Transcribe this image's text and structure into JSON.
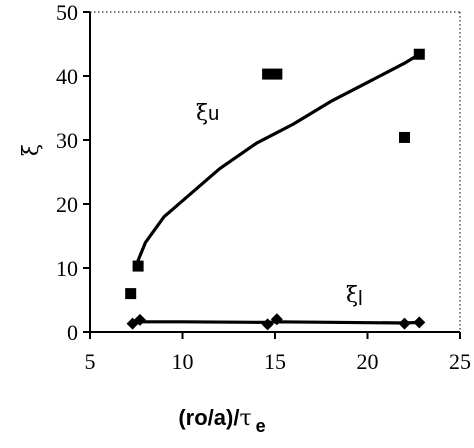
{
  "chart_data": {
    "type": "scatter",
    "title": "",
    "xlabel_main": "(ro/a)/",
    "xlabel_tau": "τ",
    "xlabel_sub": "e",
    "ylabel": "ξ",
    "xlim": [
      5,
      25
    ],
    "ylim": [
      0,
      50
    ],
    "x_ticks": [
      5,
      10,
      15,
      20,
      25
    ],
    "y_ticks": [
      0,
      10,
      20,
      30,
      40,
      50
    ],
    "x_tick_labels": [
      "5",
      "10",
      "15",
      "20",
      "25"
    ],
    "y_tick_labels": [
      "0",
      "10",
      "20",
      "30",
      "40",
      "50"
    ],
    "grid": false,
    "annotations": [
      {
        "text_main": "ξ",
        "text_sub": "u",
        "series": "upper"
      },
      {
        "text_main": "ξ",
        "text_sub": "l",
        "series": "lower"
      }
    ],
    "series": [
      {
        "marker": "square",
        "points": [
          {
            "x": 7.2,
            "y": 6.0
          },
          {
            "x": 7.6,
            "y": 10.3
          },
          {
            "x": 14.6,
            "y": 40.3
          },
          {
            "x": 15.1,
            "y": 40.3
          },
          {
            "x": 22.0,
            "y": 30.4
          },
          {
            "x": 22.8,
            "y": 43.4
          }
        ]
      },
      {
        "marker": "diamond",
        "points": [
          {
            "x": 7.3,
            "y": 1.3
          },
          {
            "x": 7.7,
            "y": 1.9
          },
          {
            "x": 14.6,
            "y": 1.2
          },
          {
            "x": 15.1,
            "y": 2.0
          },
          {
            "x": 22.0,
            "y": 1.3
          },
          {
            "x": 22.8,
            "y": 1.5
          }
        ]
      }
    ],
    "fit_curves": [
      {
        "for": "upper",
        "points": [
          {
            "x": 7.5,
            "y": 10.5
          },
          {
            "x": 8.0,
            "y": 14.0
          },
          {
            "x": 9.0,
            "y": 18.0
          },
          {
            "x": 10.0,
            "y": 20.5
          },
          {
            "x": 12.0,
            "y": 25.5
          },
          {
            "x": 14.0,
            "y": 29.5
          },
          {
            "x": 16.0,
            "y": 32.5
          },
          {
            "x": 18.0,
            "y": 36.0
          },
          {
            "x": 20.0,
            "y": 39.0
          },
          {
            "x": 21.0,
            "y": 40.5
          },
          {
            "x": 22.0,
            "y": 42.0
          },
          {
            "x": 22.8,
            "y": 43.4
          }
        ]
      },
      {
        "for": "lower",
        "points": [
          {
            "x": 7.5,
            "y": 1.6
          },
          {
            "x": 10.0,
            "y": 1.6
          },
          {
            "x": 14.6,
            "y": 1.5
          },
          {
            "x": 15.1,
            "y": 1.6
          },
          {
            "x": 22.0,
            "y": 1.4
          },
          {
            "x": 22.8,
            "y": 1.5
          }
        ]
      }
    ]
  }
}
